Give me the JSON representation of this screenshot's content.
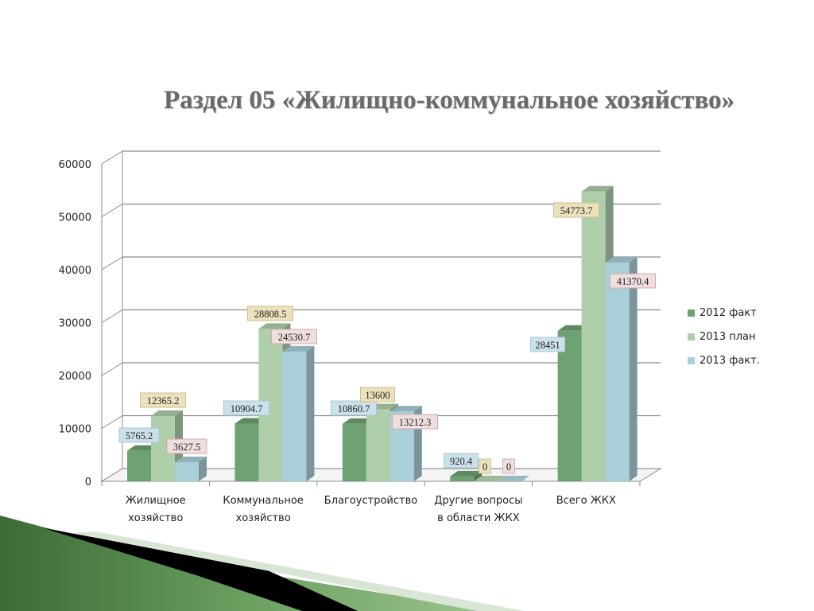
{
  "title": "Раздел 05 «Жилищно-коммунальное хозяйство»",
  "colors": {
    "series": [
      "#6ea273",
      "#aecfa9",
      "#a9cfd9"
    ],
    "label_fill": [
      "#cce0ea",
      "#ece1bd",
      "#efdede"
    ],
    "label_stroke": [
      "#a7c7d5",
      "#cfc08d",
      "#d7aaaa"
    ]
  },
  "chart_data": {
    "type": "bar",
    "ylim": [
      0,
      60000
    ],
    "yticks": [
      0,
      10000,
      20000,
      30000,
      40000,
      50000,
      60000
    ],
    "categories": [
      [
        "Жилищное",
        "хозяйство"
      ],
      [
        "Коммунальное",
        "хозяйство"
      ],
      [
        "Благоустройство"
      ],
      [
        "Другие вопросы",
        "в области ЖКХ"
      ],
      [
        "Всего ЖКХ"
      ]
    ],
    "series": [
      {
        "name": "2012 факт",
        "values": [
          5765.2,
          10904.7,
          10860.7,
          920.4,
          28451
        ]
      },
      {
        "name": "2013 план",
        "values": [
          12365.2,
          28808.5,
          13600,
          0,
          54773.7
        ]
      },
      {
        "name": "2013 факт.",
        "values": [
          3627.5,
          24530.7,
          13212.3,
          0,
          41370.4
        ]
      }
    ],
    "data_labels": [
      [
        "5765.2",
        "10904.7",
        "10860.7",
        "920.4",
        "28451"
      ],
      [
        "12365.2",
        "28808.5",
        "13600",
        "0",
        "54773.7"
      ],
      [
        "3627.5",
        "24530.7",
        "13212.3",
        "0",
        "41370.4"
      ]
    ],
    "grid": true,
    "legend_position": "right"
  }
}
